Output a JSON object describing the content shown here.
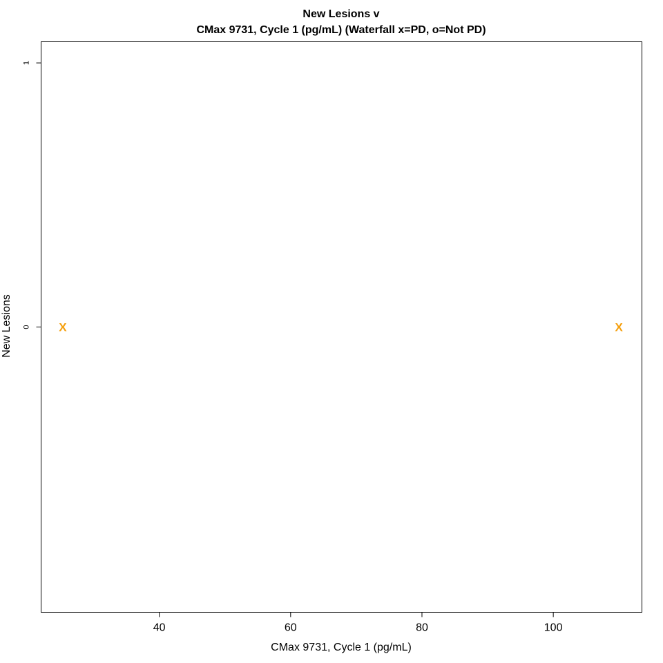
{
  "chart_data": {
    "type": "scatter",
    "title": "New Lesions v",
    "subtitle": "CMax 9731, Cycle 1  (pg/mL) (Waterfall x=PD, o=Not PD)",
    "xlabel": "CMax 9731, Cycle 1  (pg/mL)",
    "ylabel": "New Lesions",
    "xlim": [
      22,
      113.5
    ],
    "ylim": [
      -1.08,
      1.08
    ],
    "x_ticks": [
      40,
      60,
      80,
      100
    ],
    "x_tick_labels": [
      "40",
      "60",
      "80",
      "100"
    ],
    "y_ticks": [
      0,
      1
    ],
    "y_tick_labels": [
      "0",
      "1"
    ],
    "grid": false,
    "points": [
      {
        "x": 25.3,
        "y": 0,
        "marker": "x",
        "color": "#F5A00F"
      },
      {
        "x": 110,
        "y": 0,
        "marker": "x",
        "color": "#F5A00F"
      }
    ]
  }
}
